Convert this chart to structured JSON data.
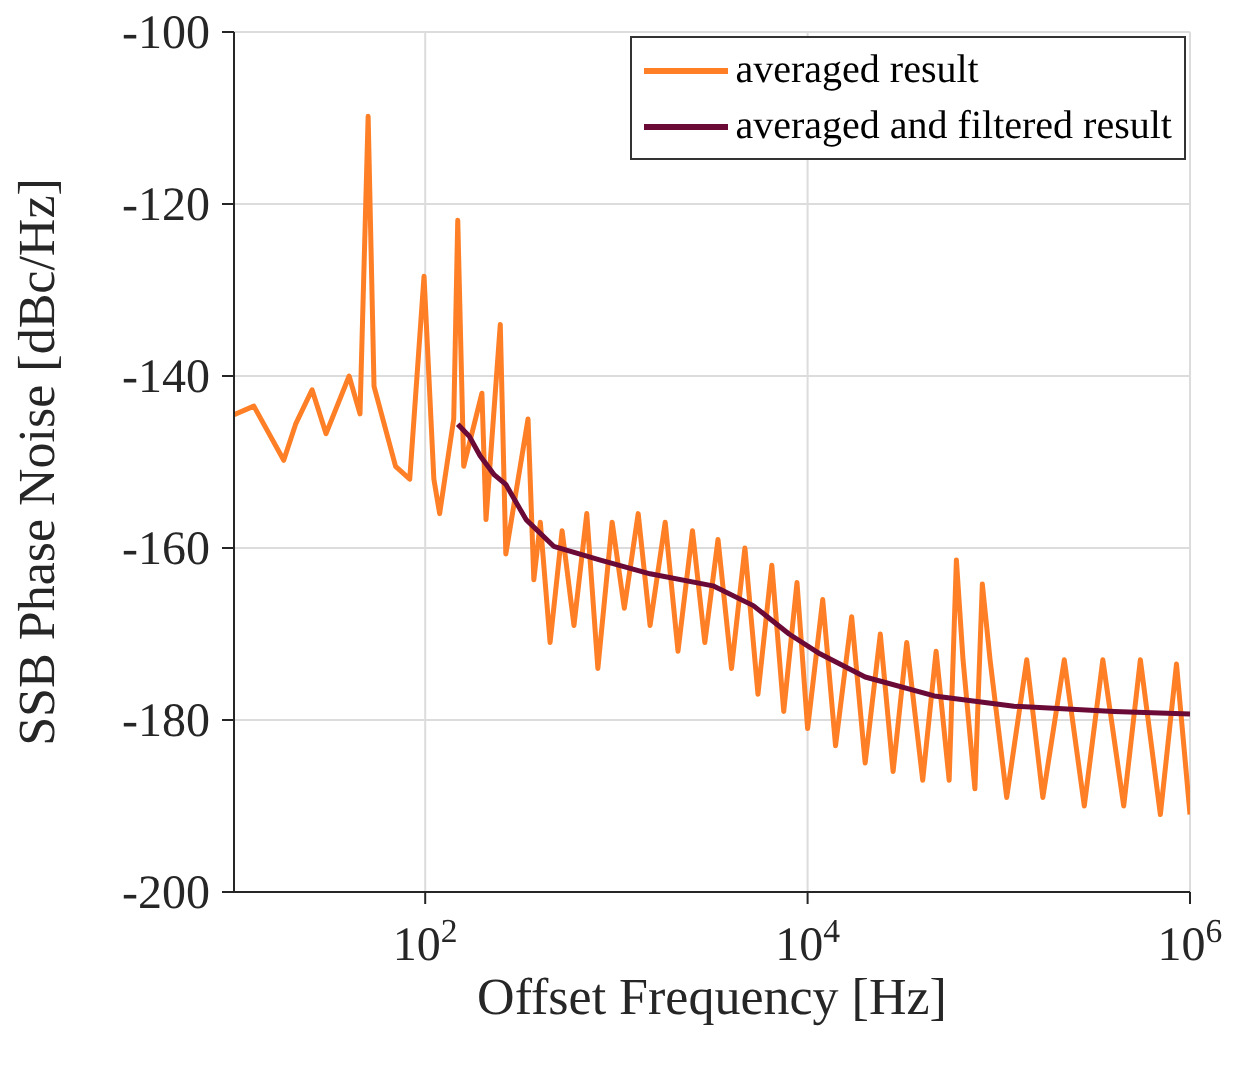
{
  "chart_data": {
    "type": "line",
    "xlabel": "Offset Frequency [Hz]",
    "ylabel": "SSB Phase Noise [dBc/Hz]",
    "log": "x",
    "grid": true,
    "legend": "top right",
    "line_style": "solid",
    "marker": "none",
    "xlim": [
      10,
      1000000
    ],
    "xticks": [
      {
        "value": 100,
        "label": "10$^{2}$"
      },
      {
        "value": 10000,
        "label": "10$^{4}$"
      },
      {
        "value": 1000000,
        "label": "10$^{6}$"
      }
    ],
    "ylim": [
      -200,
      -100
    ],
    "yticks": [
      -200,
      -180,
      -160,
      -140,
      -120,
      -100
    ],
    "series": [
      {
        "name": "averaged result",
        "color": "#ff7f27",
        "x": [
          10,
          12.7,
          18.2,
          21,
          25.6,
          30.3,
          40,
          45.6,
          50.3,
          54,
          70,
          83,
          98.6,
          111,
          119,
          141,
          148,
          159,
          198,
          208,
          247,
          264,
          345,
          370,
          400,
          450,
          520,
          600,
          700,
          800,
          950,
          1100,
          1300,
          1500,
          1800,
          2100,
          2500,
          2900,
          3400,
          4000,
          4700,
          5500,
          6500,
          7500,
          8800,
          10000,
          12000,
          14000,
          17000,
          20000,
          24000,
          28000,
          33000,
          40000,
          47000,
          55000,
          60000,
          65000,
          75000,
          82000,
          90000,
          110000,
          140000,
          170000,
          220000,
          280000,
          350000,
          450000,
          550000,
          700000,
          850000,
          1000000
        ],
        "values": [
          -144.5,
          -143.5,
          -149.8,
          -145.6,
          -141.6,
          -146.7,
          -140,
          -144.4,
          -109.8,
          -141.2,
          -150.5,
          -152,
          -128.4,
          -152,
          -156,
          -145,
          -121.9,
          -150.5,
          -142,
          -156.7,
          -134,
          -160.7,
          -145,
          -163.7,
          -157,
          -171,
          -158,
          -169,
          -156,
          -174,
          -157,
          -167,
          -156,
          -169,
          -157,
          -172,
          -158,
          -171,
          -159,
          -174,
          -160,
          -177,
          -162,
          -179,
          -164,
          -181,
          -166,
          -183,
          -168,
          -185,
          -170,
          -186,
          -171,
          -187,
          -172,
          -187,
          -161.4,
          -173,
          -188,
          -164.2,
          -173,
          -189,
          -173,
          -189,
          -173,
          -190,
          -173,
          -190,
          -173,
          -191,
          -173.5,
          -191
        ]
      },
      {
        "name": "averaged and filtered result",
        "color": "#6b0a36",
        "x": [
          148,
          170,
          194,
          230,
          264,
          337,
          470,
          825,
          1500,
          3200,
          5200,
          8000,
          11600,
          20000,
          46000,
          120000,
          400000,
          1000000
        ],
        "values": [
          -145.6,
          -147,
          -149.3,
          -151.5,
          -152.6,
          -156.7,
          -159.8,
          -161.4,
          -163,
          -164.4,
          -166.7,
          -170,
          -172.3,
          -175,
          -177.2,
          -178.4,
          -179,
          -179.3
        ]
      }
    ]
  }
}
